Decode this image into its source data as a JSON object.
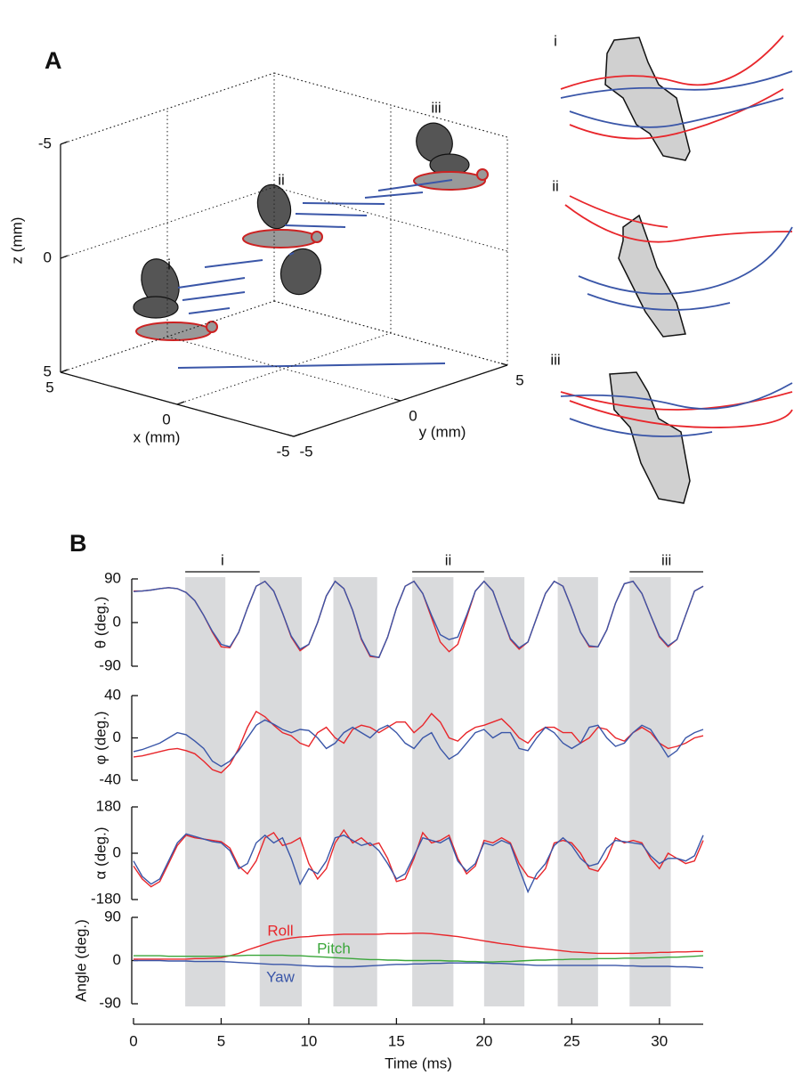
{
  "chart_data": [
    {
      "type": "axes3d",
      "label": "A",
      "xlabel": "x (mm)",
      "ylabel": "y (mm)",
      "zlabel": "z (mm)",
      "xlim": [
        5,
        -5
      ],
      "ylim": [
        -5,
        5
      ],
      "zlim": [
        5,
        -5
      ],
      "xticks": [
        5,
        0,
        -5
      ],
      "yticks": [
        -5,
        0,
        5
      ],
      "zticks": [
        -5,
        0,
        5
      ],
      "grid": true,
      "annotations": [
        "i",
        "ii",
        "iii"
      ],
      "inset_labels": [
        "i",
        "ii",
        "iii"
      ]
    },
    {
      "type": "line",
      "label": "B",
      "xlabel": "Time (ms)",
      "xlim": [
        0,
        32.5
      ],
      "xticks": [
        0,
        5,
        10,
        15,
        20,
        25,
        30
      ],
      "x": [
        0,
        0.5,
        1,
        1.5,
        2,
        2.5,
        3,
        3.5,
        4,
        4.5,
        5,
        5.5,
        6,
        6.5,
        7,
        7.5,
        8,
        8.5,
        9,
        9.5,
        10,
        10.5,
        11,
        11.5,
        12,
        12.5,
        13,
        13.5,
        14,
        14.5,
        15,
        15.5,
        16,
        16.5,
        17,
        17.5,
        18,
        18.5,
        19,
        19.5,
        20,
        20.5,
        21,
        21.5,
        22,
        22.5,
        23,
        23.5,
        24,
        24.5,
        25,
        25.5,
        26,
        26.5,
        27,
        27.5,
        28,
        28.5,
        29,
        29.5,
        30,
        30.5,
        31,
        31.5,
        32,
        32.5
      ],
      "shaded": [
        [
          2.95,
          5.24
        ],
        [
          7.2,
          9.6
        ],
        [
          11.4,
          13.9
        ],
        [
          15.9,
          18.25
        ],
        [
          20.0,
          22.3
        ],
        [
          24.2,
          26.5
        ],
        [
          28.3,
          30.65
        ]
      ],
      "segments": [
        {
          "label": "i",
          "range": [
            2.95,
            7.2
          ]
        },
        {
          "label": "ii",
          "range": [
            15.9,
            20.0
          ]
        },
        {
          "label": "iii",
          "range": [
            28.3,
            32.5
          ]
        }
      ],
      "panels": [
        {
          "ylabel": "θ (deg.)",
          "ylim": [
            -90,
            90
          ],
          "yticks": [
            -90,
            0,
            90
          ],
          "series": [
            {
              "color": "#e8262b",
              "values": [
                65,
                65,
                67,
                70,
                72,
                70,
                62,
                45,
                15,
                -20,
                -50,
                -52,
                -20,
                30,
                75,
                85,
                65,
                20,
                -30,
                -58,
                -45,
                0,
                55,
                85,
                70,
                25,
                -35,
                -70,
                -72,
                -30,
                30,
                75,
                85,
                60,
                10,
                -40,
                -60,
                -45,
                10,
                65,
                85,
                65,
                15,
                -35,
                -55,
                -40,
                10,
                60,
                85,
                75,
                30,
                -20,
                -50,
                -50,
                -15,
                40,
                80,
                85,
                60,
                15,
                -30,
                -50,
                -35,
                15,
                65,
                75
              ]
            },
            {
              "color": "#3a56a8",
              "values": [
                64,
                65,
                67,
                70,
                72,
                70,
                62,
                45,
                15,
                -18,
                -45,
                -50,
                -20,
                30,
                75,
                85,
                65,
                20,
                -28,
                -55,
                -45,
                0,
                55,
                85,
                70,
                25,
                -33,
                -68,
                -72,
                -30,
                30,
                75,
                85,
                60,
                15,
                -25,
                -35,
                -30,
                15,
                65,
                85,
                65,
                15,
                -33,
                -52,
                -40,
                10,
                60,
                85,
                75,
                30,
                -20,
                -48,
                -50,
                -15,
                40,
                80,
                85,
                60,
                15,
                -28,
                -48,
                -35,
                15,
                65,
                75
              ]
            }
          ]
        },
        {
          "ylabel": "φ (deg.)",
          "ylim": [
            -40,
            40
          ],
          "yticks": [
            -40,
            0,
            40
          ],
          "series": [
            {
              "color": "#e8262b",
              "values": [
                -18,
                -17,
                -15,
                -13,
                -11,
                -10,
                -12,
                -15,
                -22,
                -30,
                -33,
                -25,
                -10,
                10,
                25,
                20,
                12,
                5,
                2,
                -5,
                -8,
                5,
                10,
                0,
                -5,
                8,
                12,
                10,
                5,
                10,
                15,
                15,
                5,
                12,
                23,
                15,
                0,
                -3,
                5,
                10,
                12,
                15,
                18,
                10,
                0,
                -5,
                5,
                10,
                10,
                5,
                5,
                -5,
                0,
                10,
                8,
                0,
                -3,
                5,
                10,
                5,
                -5,
                -10,
                -8,
                -5,
                0,
                2
              ]
            },
            {
              "color": "#3a56a8",
              "values": [
                -13,
                -11,
                -8,
                -5,
                0,
                5,
                3,
                -3,
                -10,
                -22,
                -27,
                -22,
                -12,
                0,
                12,
                17,
                13,
                8,
                5,
                8,
                7,
                0,
                -10,
                -5,
                5,
                10,
                5,
                0,
                8,
                12,
                5,
                -5,
                -10,
                0,
                5,
                -10,
                -20,
                -15,
                -5,
                5,
                8,
                0,
                5,
                5,
                -10,
                -12,
                0,
                10,
                5,
                -5,
                -10,
                -5,
                10,
                12,
                0,
                -8,
                -5,
                5,
                12,
                8,
                -5,
                -18,
                -12,
                0,
                5,
                8
              ]
            }
          ]
        },
        {
          "ylabel": "α (deg.)",
          "ylim": [
            -180,
            180
          ],
          "yticks": [
            -180,
            0,
            180
          ],
          "series": [
            {
              "color": "#e8262b",
              "values": [
                -50,
                -100,
                -130,
                -110,
                -40,
                30,
                70,
                60,
                55,
                50,
                45,
                20,
                -50,
                -80,
                -30,
                60,
                80,
                30,
                40,
                60,
                -40,
                -100,
                -60,
                40,
                90,
                40,
                60,
                30,
                40,
                -20,
                -110,
                -100,
                -20,
                80,
                40,
                50,
                70,
                -20,
                -80,
                -50,
                50,
                40,
                60,
                40,
                -40,
                -90,
                -100,
                -60,
                40,
                50,
                40,
                0,
                -60,
                -70,
                -20,
                60,
                40,
                50,
                40,
                -20,
                -60,
                0,
                -20,
                -40,
                -30,
                50
              ]
            },
            {
              "color": "#3a56a8",
              "values": [
                -30,
                -90,
                -120,
                -100,
                -30,
                40,
                75,
                65,
                55,
                45,
                40,
                10,
                -60,
                -40,
                40,
                70,
                40,
                60,
                -20,
                -120,
                -60,
                -80,
                -30,
                60,
                70,
                50,
                30,
                40,
                10,
                -40,
                -100,
                -80,
                -10,
                60,
                50,
                40,
                60,
                -30,
                -70,
                -40,
                40,
                30,
                50,
                35,
                -60,
                -150,
                -80,
                -40,
                30,
                60,
                30,
                -20,
                -50,
                -40,
                20,
                50,
                45,
                40,
                35,
                -10,
                -40,
                -20,
                -20,
                -30,
                -10,
                70
              ]
            }
          ]
        },
        {
          "ylabel": "Angle (deg.)",
          "ylim": [
            -90,
            90
          ],
          "yticks": [
            -90,
            0,
            90
          ],
          "series": [
            {
              "name": "Roll",
              "color": "#e8262b",
              "values": [
                3,
                3,
                3,
                3,
                3,
                3,
                3,
                4,
                4,
                5,
                6,
                10,
                15,
                22,
                28,
                34,
                40,
                44,
                47,
                49,
                50,
                52,
                53,
                54,
                55,
                55,
                55,
                55,
                55,
                56,
                56,
                56,
                57,
                57,
                56,
                54,
                52,
                50,
                47,
                44,
                41,
                38,
                35,
                33,
                30,
                28,
                26,
                24,
                22,
                20,
                18,
                17,
                16,
                15,
                15,
                15,
                15,
                15,
                16,
                16,
                17,
                17,
                18,
                18,
                19,
                19
              ]
            },
            {
              "name": "Pitch",
              "color": "#3aa63a",
              "values": [
                10,
                10,
                10,
                10,
                9,
                9,
                9,
                9,
                9,
                9,
                9,
                10,
                10,
                11,
                11,
                11,
                11,
                11,
                10,
                10,
                9,
                8,
                7,
                6,
                5,
                4,
                3,
                2,
                2,
                1,
                1,
                0,
                0,
                0,
                0,
                0,
                -1,
                -1,
                -2,
                -2,
                -3,
                -3,
                -2,
                -2,
                -1,
                0,
                1,
                1,
                2,
                2,
                3,
                3,
                3,
                4,
                4,
                4,
                5,
                5,
                5,
                6,
                6,
                7,
                7,
                8,
                9,
                10
              ]
            },
            {
              "name": "Yaw",
              "color": "#3a56a8",
              "values": [
                0,
                0,
                0,
                0,
                -1,
                -1,
                -1,
                -2,
                -2,
                -2,
                -2,
                -3,
                -4,
                -5,
                -6,
                -7,
                -8,
                -8,
                -9,
                -10,
                -11,
                -12,
                -12,
                -13,
                -13,
                -13,
                -12,
                -11,
                -10,
                -9,
                -8,
                -8,
                -7,
                -7,
                -6,
                -6,
                -5,
                -5,
                -5,
                -5,
                -5,
                -6,
                -6,
                -7,
                -8,
                -9,
                -10,
                -10,
                -10,
                -10,
                -10,
                -10,
                -10,
                -10,
                -10,
                -10,
                -11,
                -11,
                -12,
                -12,
                -12,
                -12,
                -13,
                -13,
                -14,
                -15
              ]
            }
          ]
        }
      ]
    }
  ]
}
